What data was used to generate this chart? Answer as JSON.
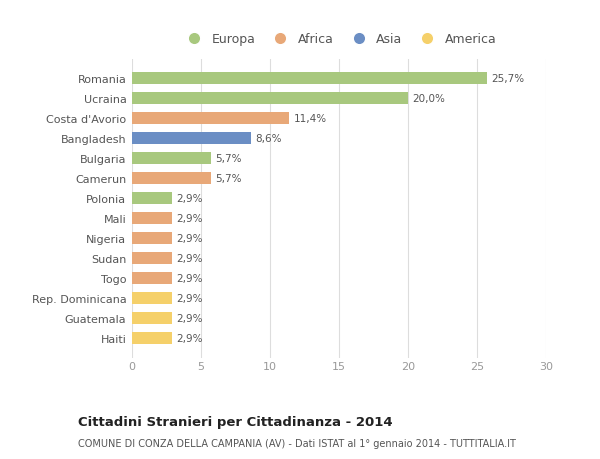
{
  "categories": [
    "Romania",
    "Ucraina",
    "Costa d'Avorio",
    "Bangladesh",
    "Bulgaria",
    "Camerun",
    "Polonia",
    "Mali",
    "Nigeria",
    "Sudan",
    "Togo",
    "Rep. Dominicana",
    "Guatemala",
    "Haiti"
  ],
  "values": [
    25.7,
    20.0,
    11.4,
    8.6,
    5.7,
    5.7,
    2.9,
    2.9,
    2.9,
    2.9,
    2.9,
    2.9,
    2.9,
    2.9
  ],
  "labels": [
    "25,7%",
    "20,0%",
    "11,4%",
    "8,6%",
    "5,7%",
    "5,7%",
    "2,9%",
    "2,9%",
    "2,9%",
    "2,9%",
    "2,9%",
    "2,9%",
    "2,9%",
    "2,9%"
  ],
  "continent": [
    "Europa",
    "Europa",
    "Africa",
    "Asia",
    "Europa",
    "Africa",
    "Europa",
    "Africa",
    "Africa",
    "Africa",
    "Africa",
    "America",
    "America",
    "America"
  ],
  "colors": {
    "Europa": "#a8c87e",
    "Africa": "#e8a878",
    "Asia": "#6b8ec4",
    "America": "#f5d06a"
  },
  "xlim": [
    0,
    30
  ],
  "xticks": [
    0,
    5,
    10,
    15,
    20,
    25,
    30
  ],
  "title": "Cittadini Stranieri per Cittadinanza - 2014",
  "subtitle": "COMUNE DI CONZA DELLA CAMPANIA (AV) - Dati ISTAT al 1° gennaio 2014 - TUTTITALIA.IT",
  "background_color": "#ffffff",
  "grid_color": "#dddddd",
  "bar_height": 0.6,
  "legend_order": [
    "Europa",
    "Africa",
    "Asia",
    "America"
  ]
}
